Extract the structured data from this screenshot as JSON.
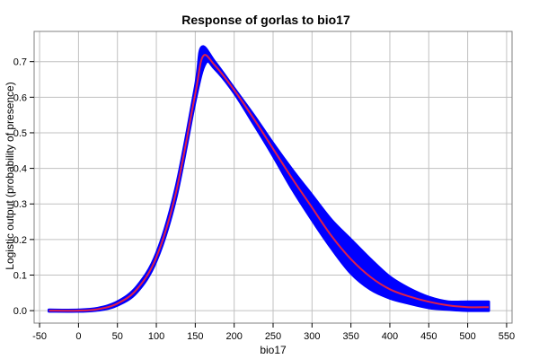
{
  "chart_data": {
    "type": "line",
    "title": "Response of gorlas to bio17",
    "xlabel": "bio17",
    "ylabel": "Logistic output (probability of presence)",
    "xlim": [
      -57,
      557
    ],
    "ylim": [
      -0.035,
      0.785
    ],
    "xticks": [
      -50,
      0,
      50,
      100,
      150,
      200,
      250,
      300,
      350,
      400,
      450,
      500,
      550
    ],
    "yticks": [
      0.0,
      0.1,
      0.2,
      0.3,
      0.4,
      0.5,
      0.6,
      0.7
    ],
    "grid": true,
    "series": [
      {
        "role": "mean",
        "color": "#e0204a",
        "x": [
          -38,
          0,
          25,
          50,
          75,
          100,
          125,
          150,
          160,
          175,
          200,
          225,
          250,
          275,
          300,
          325,
          350,
          375,
          400,
          425,
          450,
          475,
          500,
          527
        ],
        "y": [
          0.0,
          0.0,
          0.004,
          0.02,
          0.06,
          0.15,
          0.33,
          0.61,
          0.715,
          0.69,
          0.62,
          0.54,
          0.455,
          0.37,
          0.29,
          0.21,
          0.145,
          0.095,
          0.06,
          0.04,
          0.025,
          0.015,
          0.01,
          0.01
        ]
      },
      {
        "role": "upper-band",
        "color": "#0000ff",
        "x": [
          -38,
          0,
          25,
          50,
          75,
          100,
          125,
          150,
          158,
          175,
          200,
          225,
          250,
          275,
          300,
          325,
          350,
          375,
          400,
          425,
          450,
          475,
          500,
          527
        ],
        "y": [
          0.002,
          0.002,
          0.007,
          0.025,
          0.068,
          0.16,
          0.345,
          0.63,
          0.74,
          0.7,
          0.625,
          0.55,
          0.47,
          0.395,
          0.325,
          0.255,
          0.2,
          0.145,
          0.095,
          0.062,
          0.038,
          0.025,
          0.025,
          0.025
        ]
      },
      {
        "role": "lower-band",
        "color": "#0000ff",
        "x": [
          -38,
          0,
          25,
          50,
          75,
          100,
          125,
          150,
          163,
          175,
          200,
          225,
          250,
          275,
          300,
          325,
          350,
          375,
          400,
          425,
          450,
          475,
          500,
          527
        ],
        "y": [
          -0.002,
          -0.002,
          0.001,
          0.015,
          0.052,
          0.14,
          0.315,
          0.59,
          0.695,
          0.68,
          0.612,
          0.525,
          0.435,
          0.34,
          0.255,
          0.175,
          0.105,
          0.06,
          0.035,
          0.02,
          0.008,
          0.003,
          0.0,
          0.0
        ]
      }
    ]
  }
}
